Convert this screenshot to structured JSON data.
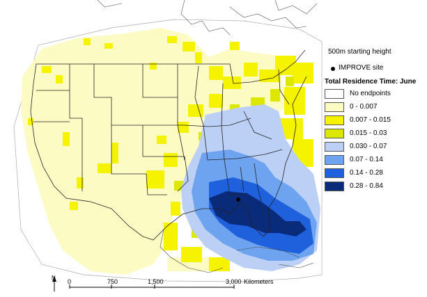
{
  "legend": {
    "starting_height": "500m starting height",
    "site_label": "IMPROVE site",
    "title": "Total Residence Time: June",
    "classes": [
      {
        "label": "No endpoints",
        "color": "#ffffff"
      },
      {
        "label": "0 - 0.007",
        "color": "#fdfbc4"
      },
      {
        "label": "0.007 - 0.015",
        "color": "#f5f300"
      },
      {
        "label": "0.015 - 0.03",
        "color": "#dde800"
      },
      {
        "label": "0.030 - 0.07",
        "color": "#bcd0f5"
      },
      {
        "label": "0.07 - 0.14",
        "color": "#6ea4ef"
      },
      {
        "label": "0.14 - 0.28",
        "color": "#1f60dd"
      },
      {
        "label": "0.28 - 0.84",
        "color": "#0a2a7a"
      }
    ]
  },
  "scale": {
    "north": "N",
    "ticks": [
      "0",
      "750",
      "1,500",
      "3,000"
    ],
    "unit": "Kilometers"
  }
}
